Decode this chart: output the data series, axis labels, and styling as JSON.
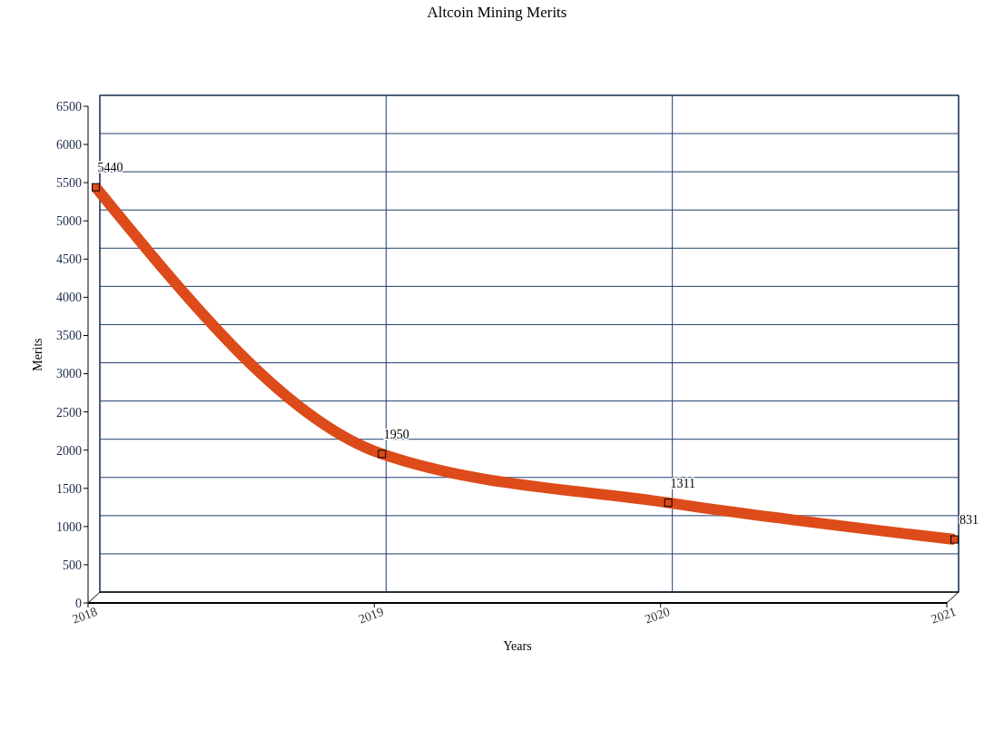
{
  "chart_data": {
    "type": "line",
    "title": "Altcoin Mining Merits",
    "xlabel": "Years",
    "ylabel": "Merits",
    "categories": [
      "2018",
      "2019",
      "2020",
      "2021"
    ],
    "series": [
      {
        "color": "#dd4b1a",
        "values": [
          5440,
          1950,
          1311,
          831
        ]
      }
    ],
    "ylim": [
      0,
      6500
    ],
    "yticks": [
      0,
      500,
      1000,
      1500,
      2000,
      2500,
      3000,
      3500,
      4000,
      4500,
      5000,
      5500,
      6000,
      6500
    ],
    "grid": true,
    "marker": "square",
    "data_labels": true
  }
}
